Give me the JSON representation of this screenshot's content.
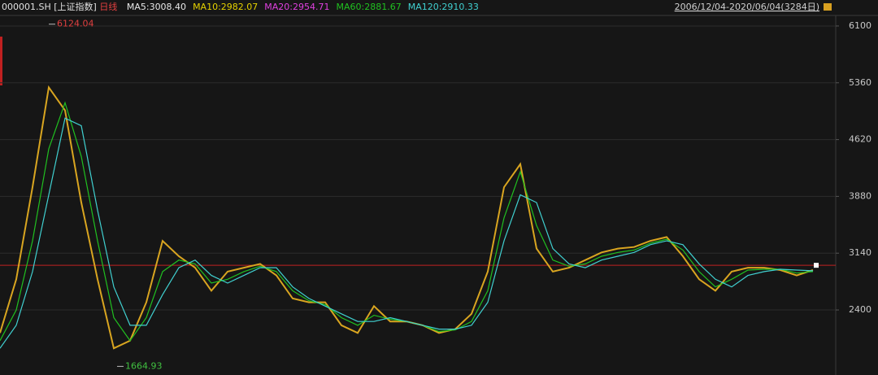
{
  "chart_data": {
    "type": "line",
    "header": {
      "symbol": "000001.SH",
      "name": "[上证指数]",
      "period": "日线",
      "indicators": [
        {
          "text": "MA5:3008.40",
          "color": "#e8e8e8"
        },
        {
          "text": "MA10:2982.07",
          "color": "#e6d200"
        },
        {
          "text": "MA20:2954.71",
          "color": "#e040e0"
        },
        {
          "text": "MA60:2881.67",
          "color": "#20c020"
        },
        {
          "text": "MA120:2910.33",
          "color": "#40d0d0"
        }
      ],
      "range": "2006/12/04-2020/06/04(3284日)"
    },
    "ylim": [
      1616,
      6248
    ],
    "yticks": [
      2400,
      3140,
      3880,
      4620,
      5360,
      6100
    ],
    "grid": true,
    "ref_line": 2982,
    "annotations": [
      {
        "text": "6124.04",
        "value": 6124.04,
        "color": "#e04040"
      },
      {
        "text": "1664.93",
        "value": 1664.93,
        "color": "#40c040"
      }
    ],
    "series": [
      {
        "color": "#d9a520",
        "values": [
          2100,
          2800,
          4000,
          5300,
          5000,
          3800,
          2800,
          1900,
          2000,
          2500,
          3300,
          3100,
          2950,
          2650,
          2900,
          2950,
          3000,
          2850,
          2550,
          2500,
          2500,
          2200,
          2100,
          2450,
          2250,
          2250,
          2200,
          2100,
          2150,
          2350,
          2900,
          4000,
          4300,
          3200,
          2900,
          2950,
          3050,
          3150,
          3200,
          3220,
          3300,
          3350,
          3100,
          2800,
          2650,
          2900,
          2950,
          2950,
          2920,
          2850,
          2920
        ]
      },
      {
        "color": "#20c020",
        "values": [
          2000,
          2400,
          3300,
          4500,
          5100,
          4400,
          3300,
          2300,
          2000,
          2300,
          2900,
          3050,
          3000,
          2750,
          2800,
          2900,
          2970,
          2900,
          2650,
          2520,
          2470,
          2300,
          2200,
          2330,
          2280,
          2250,
          2200,
          2120,
          2140,
          2250,
          2650,
          3600,
          4200,
          3500,
          3050,
          2970,
          3000,
          3100,
          3150,
          3180,
          3270,
          3320,
          3180,
          2900,
          2700,
          2800,
          2920,
          2930,
          2930,
          2880,
          2900
        ]
      },
      {
        "color": "#40d0d0",
        "values": [
          1900,
          2200,
          2900,
          3900,
          4900,
          4800,
          3700,
          2700,
          2200,
          2200,
          2600,
          2950,
          3050,
          2850,
          2750,
          2850,
          2950,
          2950,
          2700,
          2550,
          2450,
          2350,
          2250,
          2250,
          2300,
          2250,
          2200,
          2150,
          2150,
          2200,
          2500,
          3300,
          3900,
          3800,
          3200,
          3000,
          2950,
          3050,
          3100,
          3150,
          3250,
          3300,
          3250,
          3000,
          2800,
          2700,
          2850,
          2900,
          2930,
          2920,
          2910
        ]
      }
    ]
  }
}
